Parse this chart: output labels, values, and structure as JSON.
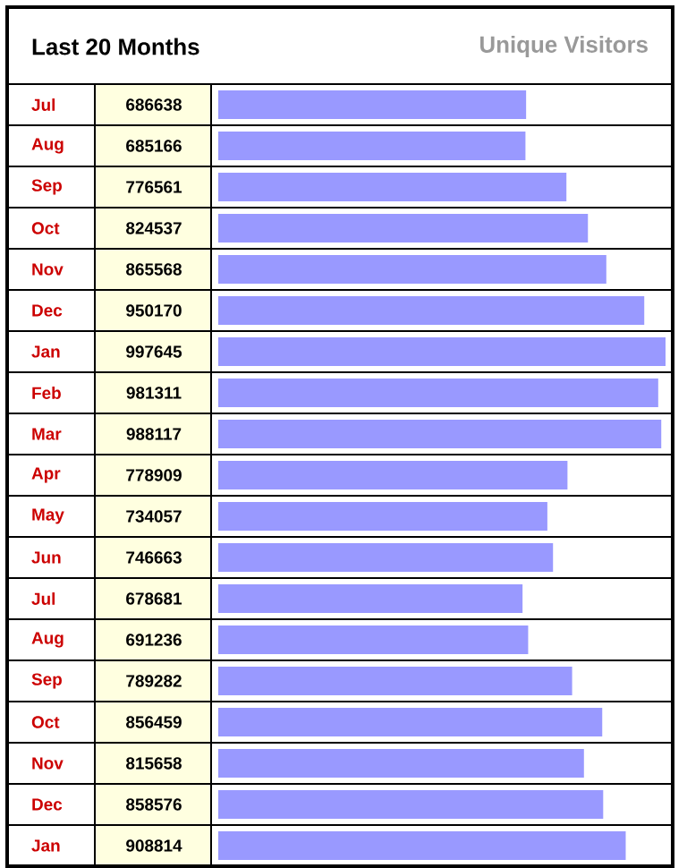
{
  "chart_data": {
    "type": "bar",
    "orientation": "horizontal",
    "title": "Last 20 Months",
    "subtitle": "Unique Visitors",
    "categories": [
      "Jul",
      "Aug",
      "Sep",
      "Oct",
      "Nov",
      "Dec",
      "Jan",
      "Feb",
      "Mar",
      "Apr",
      "May",
      "Jun",
      "Jul",
      "Aug",
      "Sep",
      "Oct",
      "Nov",
      "Dec",
      "Jan"
    ],
    "values": [
      686638,
      685166,
      776561,
      824537,
      865568,
      950170,
      997645,
      981311,
      988117,
      778909,
      734057,
      746663,
      678681,
      691236,
      789282,
      856459,
      815658,
      858576,
      908814
    ],
    "color": "#9999ff",
    "data_labels": true
  }
}
